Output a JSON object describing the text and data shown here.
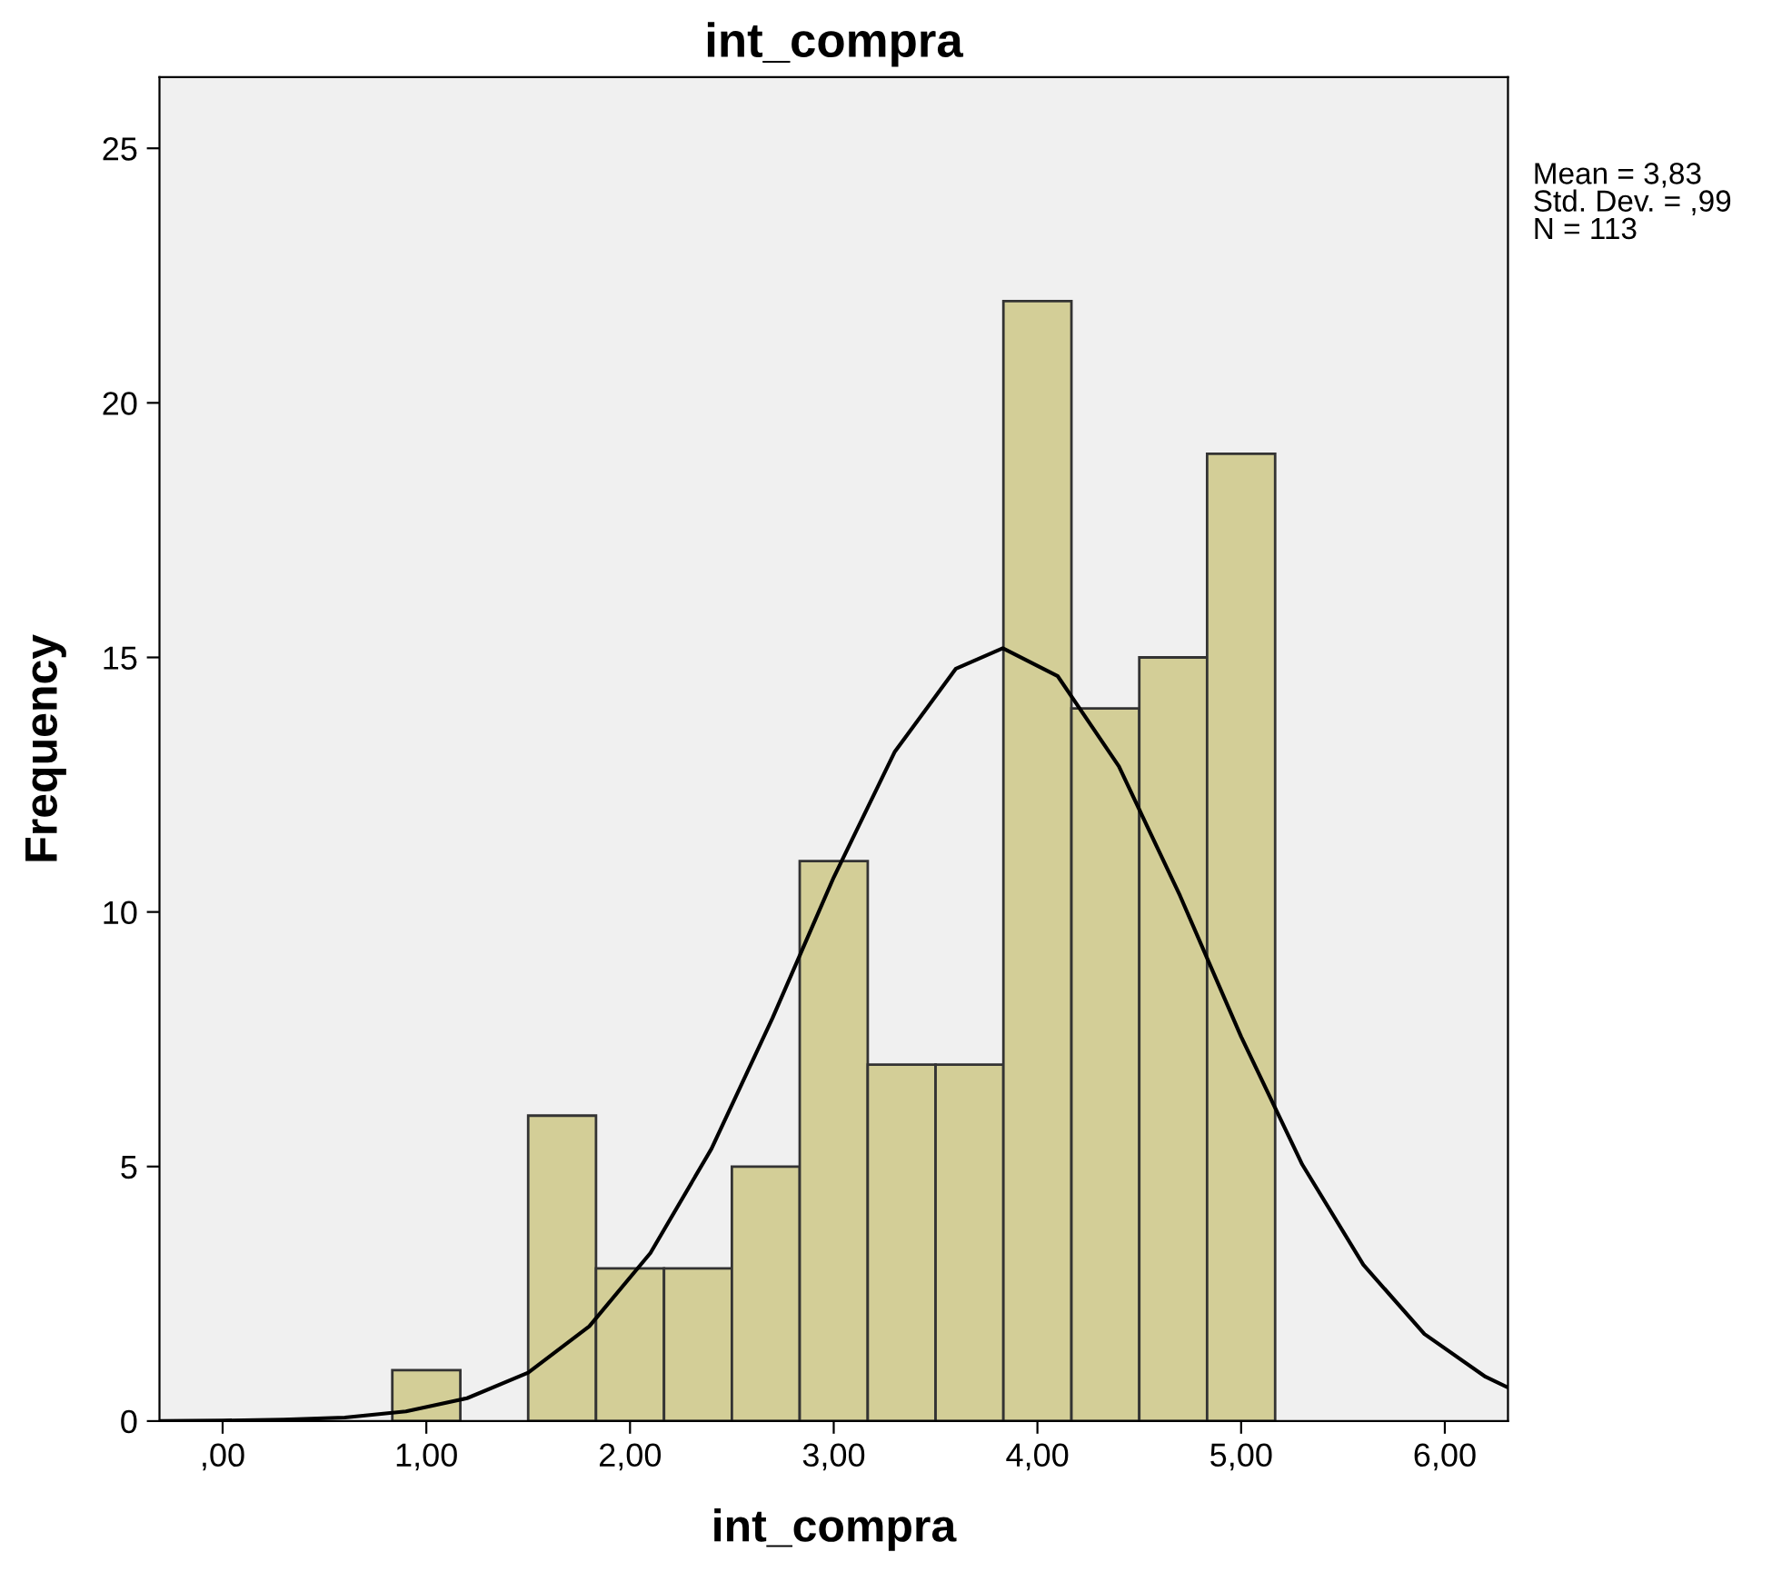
{
  "chart_data": {
    "type": "histogram",
    "title": "int_compra",
    "xlabel": "int_compra",
    "ylabel": "Frequency",
    "bins": [
      0.833,
      1.167,
      1.5,
      1.833,
      2.167,
      2.5,
      2.833,
      3.167,
      3.5,
      3.833,
      4.167,
      4.5,
      4.833,
      5.167
    ],
    "values": [
      1,
      0,
      6,
      3,
      3,
      5,
      11,
      7,
      7,
      22,
      14,
      15,
      19
    ],
    "color": "#d3ce97",
    "series": [
      {
        "type": "line",
        "color": "#000000",
        "x": [
          -0.3,
          0.0,
          0.3,
          0.6,
          0.9,
          1.2,
          1.5,
          1.8,
          2.1,
          2.4,
          2.7,
          3.0,
          3.3,
          3.6,
          3.83,
          4.1,
          4.4,
          4.7,
          5.0,
          5.3,
          5.6,
          5.9,
          6.2,
          6.31
        ],
        "values": [
          0.0,
          0.01,
          0.03,
          0.07,
          0.19,
          0.45,
          0.95,
          1.86,
          3.3,
          5.35,
          7.92,
          10.68,
          13.15,
          14.78,
          15.18,
          14.63,
          12.86,
          10.32,
          7.55,
          5.04,
          3.07,
          1.71,
          0.87,
          0.66
        ]
      }
    ],
    "xlim": [
      -0.31,
      6.31
    ],
    "xticks": [
      {
        "value": 0,
        "label": ",00"
      },
      {
        "value": 1,
        "label": "1,00"
      },
      {
        "value": 2,
        "label": "2,00"
      },
      {
        "value": 3,
        "label": "3,00"
      },
      {
        "value": 4,
        "label": "4,00"
      },
      {
        "value": 5,
        "label": "5,00"
      },
      {
        "value": 6,
        "label": "6,00"
      }
    ],
    "ylim": [
      0,
      26.4
    ],
    "yticks": [
      0,
      5,
      10,
      15,
      20,
      25
    ],
    "grid": false,
    "line_style": "solid",
    "marker": "none",
    "annotations": [
      "Mean = 3,83",
      "Std. Dev. = ,99",
      "N = 113"
    ]
  }
}
